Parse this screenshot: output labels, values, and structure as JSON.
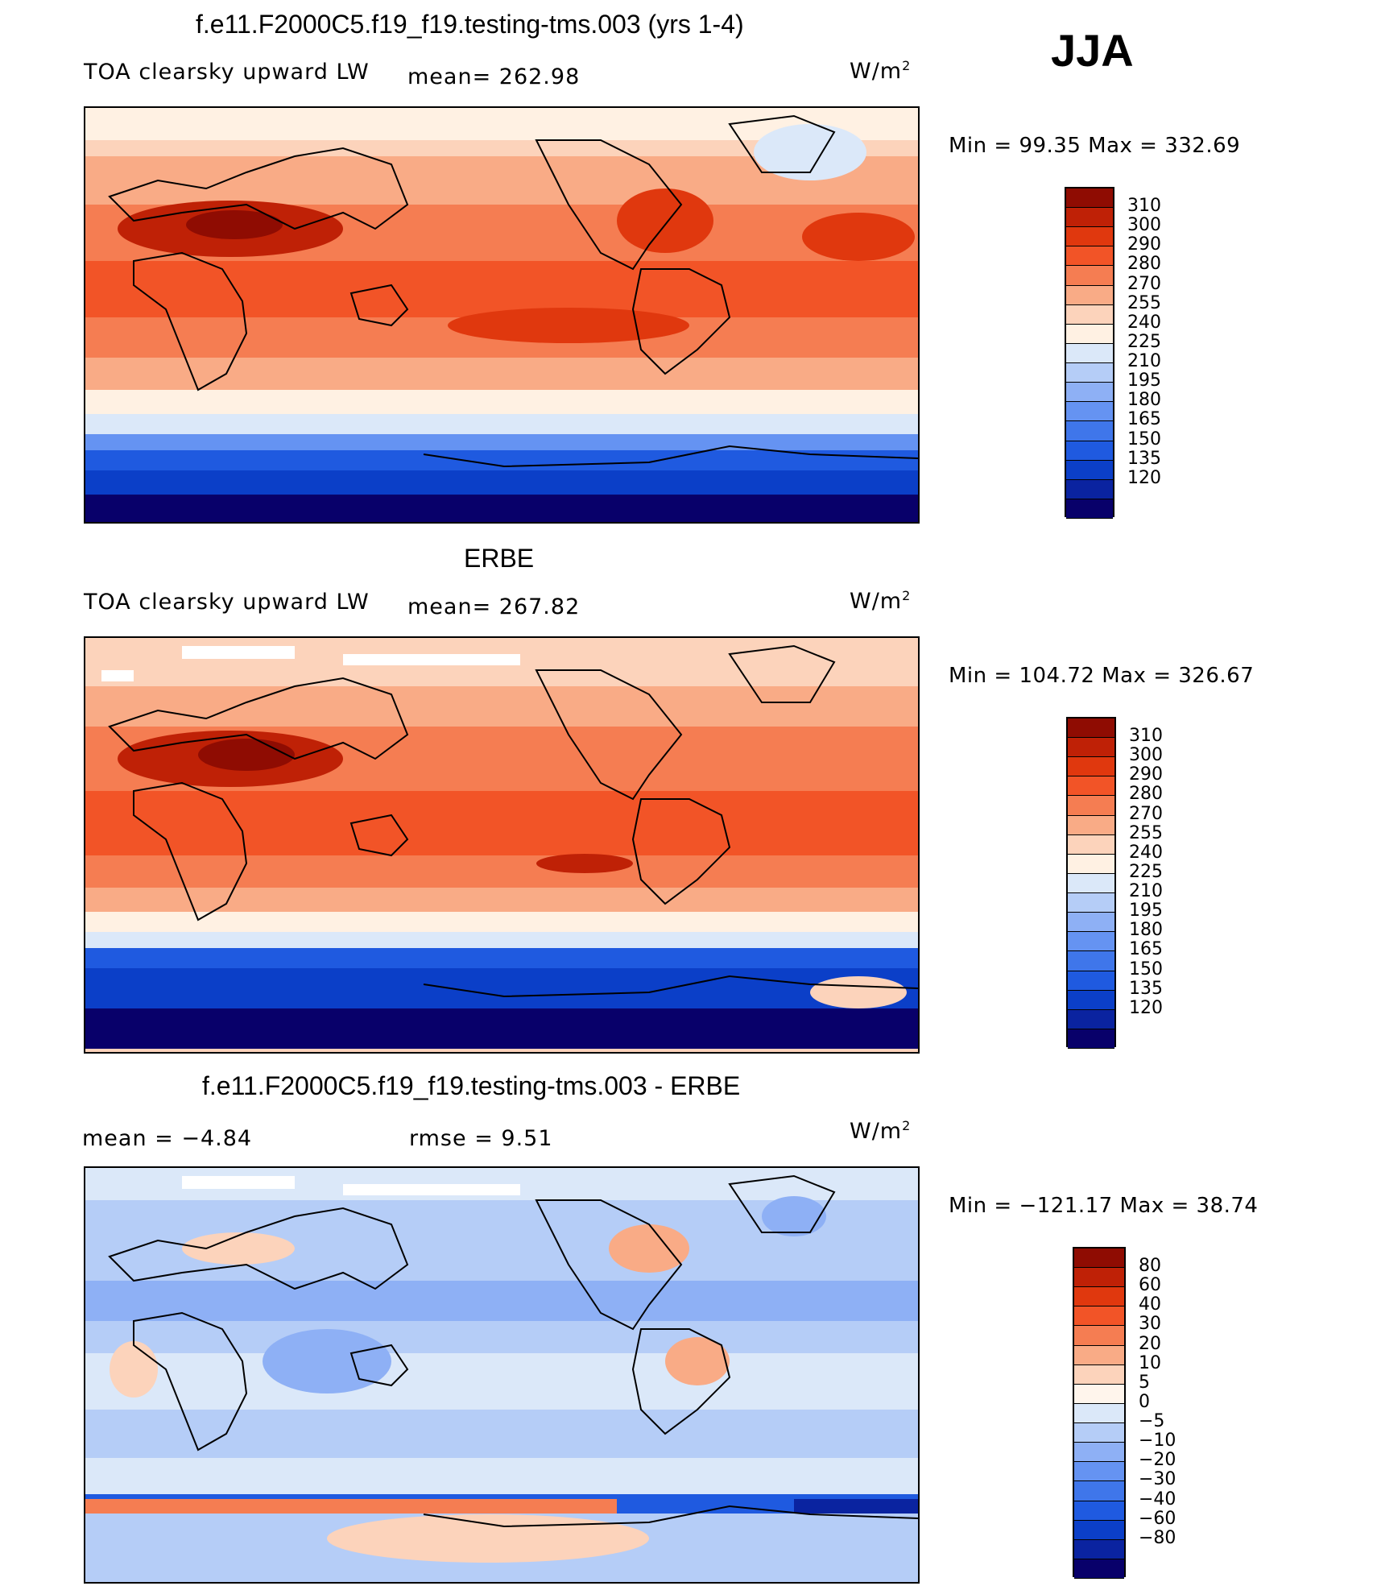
{
  "season": "JJA",
  "units_base": "W/m",
  "units_exp": "2",
  "colors": {
    "abs_scale": [
      "#08006a",
      "#0a23a0",
      "#0b3fc8",
      "#1f5ae0",
      "#3f76ea",
      "#6593f2",
      "#8eb0f5",
      "#b5cdf7",
      "#dbe8f9",
      "#fff1e3",
      "#fcd3bb",
      "#f9ab86",
      "#f57d52",
      "#f25427",
      "#e0380e",
      "#bf2106",
      "#8f0c02"
    ],
    "diff_scale": [
      "#08006a",
      "#0a23a0",
      "#0b3fc8",
      "#1f5ae0",
      "#3f76ea",
      "#6593f2",
      "#8eb0f5",
      "#b5cdf7",
      "#dbe8f9",
      "#fff5ec",
      "#fcd3bb",
      "#f9ab86",
      "#f57d52",
      "#f25427",
      "#e0380e",
      "#bf2106",
      "#8f0c02"
    ]
  },
  "panels": [
    {
      "title": "f.e11.F2000C5.f19_f19.testing-tms.003 (yrs 1-4)",
      "variable": "TOA clearsky upward LW",
      "stat": "mean=  262.98",
      "minmax": "Min =   99.35  Max  =  332.69",
      "ticks": [
        "310",
        "300",
        "290",
        "280",
        "270",
        "255",
        "240",
        "225",
        "210",
        "195",
        "180",
        "165",
        "150",
        "135",
        "120"
      ]
    },
    {
      "title": "ERBE",
      "variable": "TOA clearsky upward LW",
      "stat": "mean=  267.82",
      "minmax": "Min  =  104.72  Max  =  326.67",
      "ticks": [
        "310",
        "300",
        "290",
        "280",
        "270",
        "255",
        "240",
        "225",
        "210",
        "195",
        "180",
        "165",
        "150",
        "135",
        "120"
      ]
    },
    {
      "title": "f.e11.F2000C5.f19_f19.testing-tms.003 - ERBE",
      "stat_left": "mean  =    −4.84",
      "stat_right": "rmse  =     9.51",
      "minmax": "Min  =  −121.17  Max  =    38.74",
      "ticks": [
        "80",
        "60",
        "40",
        "30",
        "20",
        "10",
        "5",
        "0",
        "−5",
        "−10",
        "−20",
        "−30",
        "−40",
        "−60",
        "−80"
      ]
    }
  ]
}
